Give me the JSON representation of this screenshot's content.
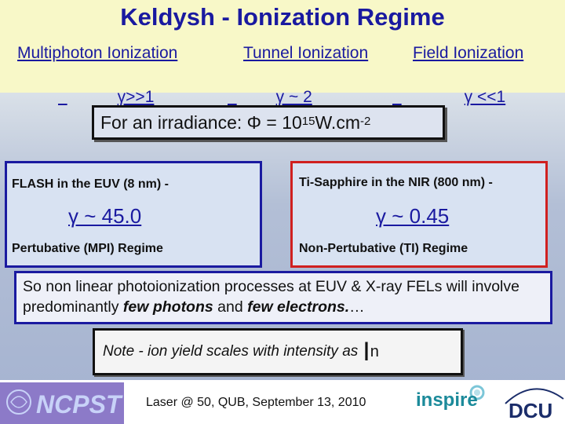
{
  "title": "Keldysh - Ionization Regime",
  "regimes": {
    "multiphoton": "Multiphoton Ionization",
    "tunnel": "Tunnel Ionization",
    "field": "Field Ionization",
    "gamma_multiphoton": "γ>>1",
    "gamma_tunnel": "γ ~ 2",
    "gamma_field": "γ <<1"
  },
  "irradiance": {
    "prefix": "For an irradiance: Φ = 10",
    "exponent": "15",
    "unit": " W.cm",
    "unit_exponent": "-2"
  },
  "left_panel": {
    "source": "FLASH in the EUV (8 nm) -",
    "gamma": "γ ~ 45.0",
    "regime": "Pertubative (MPI) Regime"
  },
  "right_panel": {
    "source": "Ti-Sapphire in the NIR (800 nm) -",
    "gamma": "γ ~ 0.45",
    "regime": "Non-Pertubative (TI) Regime"
  },
  "paragraph": {
    "part1": "So non linear photoionization processes at EUV & X-ray FELs will involve predominantly ",
    "em1": "few photons",
    "part2": " and ",
    "em2": "few electrons.",
    "part3": "…"
  },
  "note": {
    "text": "Note - ion yield scales with intensity as",
    "symbol": "I",
    "power": "n"
  },
  "footer": {
    "left_logo": "NCPST",
    "conference": "Laser @ 50, QUB, September 13, 2010",
    "inspire_logo": "inspire",
    "dcu_logo": "DCU"
  },
  "colors": {
    "accent_blue": "#1a1aa0",
    "accent_red": "#d02020"
  }
}
